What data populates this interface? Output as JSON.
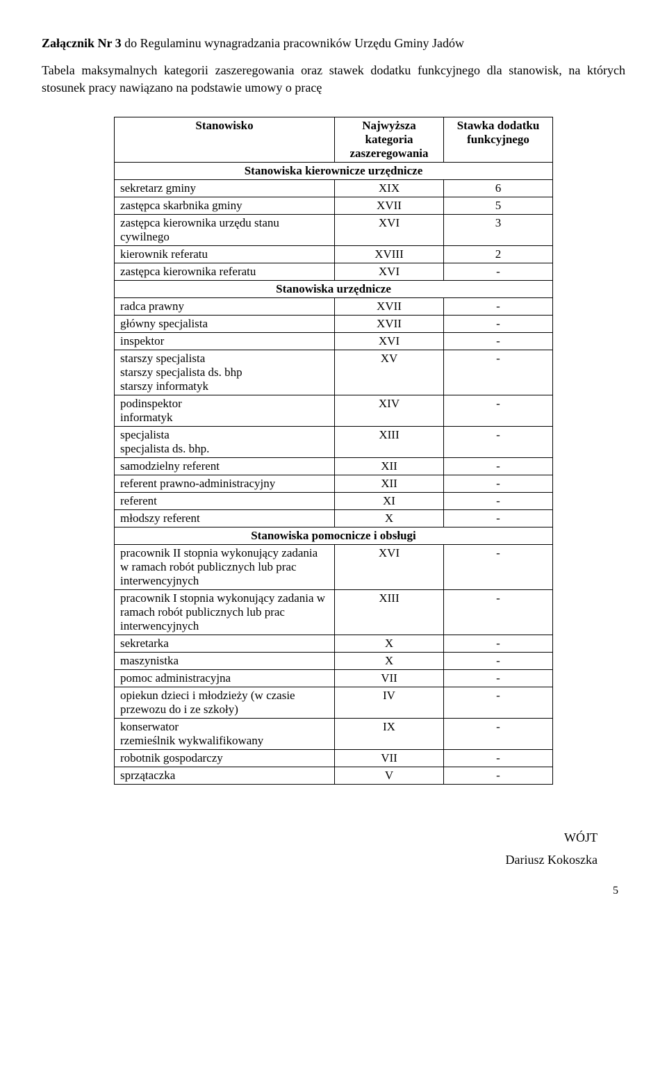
{
  "header": {
    "title_bold": "Załącznik Nr 3",
    "title_rest": " do Regulaminu wynagradzania pracowników Urzędu Gminy Jadów",
    "subtitle": "Tabela maksymalnych kategorii zaszeregowania oraz stawek dodatku funkcyjnego dla stanowisk, na których stosunek pracy nawiązano na podstawie umowy o pracę"
  },
  "table": {
    "head": {
      "col1": "Stanowisko",
      "col2_l1": "Najwyższa",
      "col2_l2": "kategoria",
      "col2_l3": "zaszeregowania",
      "col3_l1": "Stawka dodatku",
      "col3_l2": "funkcyjnego"
    },
    "sections": [
      {
        "title": "Stanowiska kierownicze urzędnicze",
        "rows": [
          {
            "name": "sekretarz gminy",
            "cat": "XIX",
            "fun": "6"
          },
          {
            "name": "zastępca skarbnika gminy",
            "cat": "XVII",
            "fun": "5"
          },
          {
            "name": "zastępca kierownika urzędu stanu cywilnego",
            "cat": "XVI",
            "fun": "3"
          },
          {
            "name": "kierownik referatu",
            "cat": "XVIII",
            "fun": "2"
          },
          {
            "name": "zastępca kierownika referatu",
            "cat": "XVI",
            "fun": "-"
          }
        ]
      },
      {
        "title": "Stanowiska urzędnicze",
        "rows": [
          {
            "name": "radca prawny",
            "cat": "XVII",
            "fun": "-"
          },
          {
            "name": "główny specjalista",
            "cat": "XVII",
            "fun": "-"
          },
          {
            "name": "inspektor",
            "cat": "XVI",
            "fun": "-"
          },
          {
            "name": "starszy specjalista\nstarszy specjalista ds. bhp\nstarszy informatyk",
            "cat": "XV",
            "fun": "-"
          },
          {
            "name": "podinspektor\ninformatyk",
            "cat": "XIV",
            "fun": "-"
          },
          {
            "name": "specjalista\nspecjalista ds. bhp.",
            "cat": "XIII",
            "fun": "-"
          },
          {
            "name": "samodzielny referent",
            "cat": "XII",
            "fun": "-"
          },
          {
            "name": "referent prawno-administracyjny",
            "cat": "XII",
            "fun": "-"
          },
          {
            "name": "referent",
            "cat": "XI",
            "fun": "-"
          },
          {
            "name": "młodszy referent",
            "cat": "X",
            "fun": "-"
          }
        ]
      },
      {
        "title": "Stanowiska pomocnicze i obsługi",
        "rows": [
          {
            "name": "pracownik II stopnia wykonujący zadania w ramach robót publicznych lub prac interwencyjnych",
            "cat": "XVI",
            "fun": "-"
          },
          {
            "name": "pracownik I stopnia wykonujący zadania w ramach robót publicznych lub prac interwencyjnych",
            "cat": "XIII",
            "fun": "-"
          },
          {
            "name": "sekretarka",
            "cat": "X",
            "fun": "-"
          },
          {
            "name": "maszynistka",
            "cat": "X",
            "fun": "-"
          },
          {
            "name": "pomoc administracyjna",
            "cat": "VII",
            "fun": "-"
          },
          {
            "name": "opiekun dzieci i młodzieży (w czasie przewozu do i ze szkoły)",
            "cat": "IV",
            "fun": "-"
          },
          {
            "name": "konserwator\nrzemieślnik wykwalifikowany",
            "cat": "IX",
            "fun": "-"
          },
          {
            "name": "robotnik gospodarczy",
            "cat": "VII",
            "fun": "-"
          },
          {
            "name": "sprzątaczka",
            "cat": "V",
            "fun": "-"
          }
        ]
      }
    ]
  },
  "signature": {
    "role": "WÓJT",
    "name": "Dariusz Kokoszka"
  },
  "page_number": "5",
  "style": {
    "background": "#ffffff",
    "text_color": "#000000",
    "border_color": "#000000",
    "font_family": "Times New Roman"
  }
}
